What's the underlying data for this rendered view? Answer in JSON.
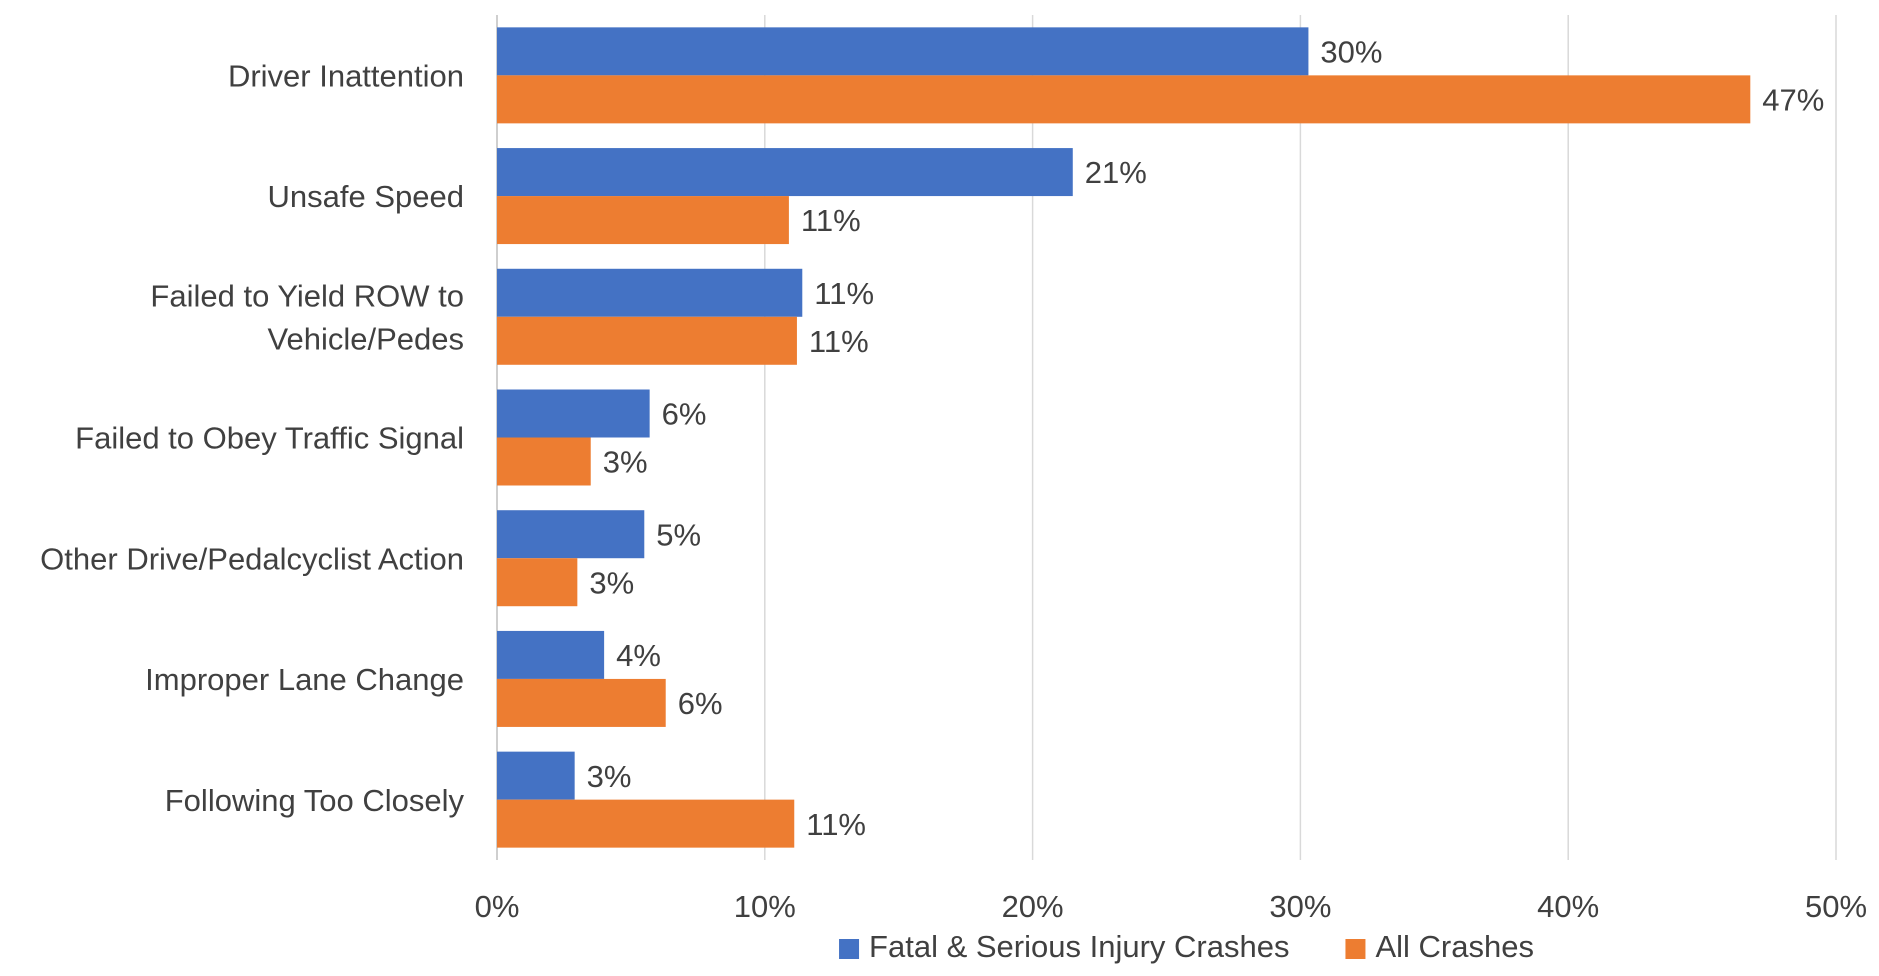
{
  "chart_data": {
    "type": "bar",
    "orientation": "horizontal",
    "title": "",
    "xlabel": "",
    "ylabel": "",
    "xlim": [
      0,
      50
    ],
    "x_ticks": [
      0,
      10,
      20,
      30,
      40,
      50
    ],
    "x_tick_labels": [
      "0%",
      "10%",
      "20%",
      "30%",
      "40%",
      "50%"
    ],
    "grid": true,
    "legend_position": "bottom",
    "categories": [
      "Driver Inattention",
      "Unsafe Speed",
      "Failed to Yield ROW to Vehicle/Pedes",
      "Failed to Obey Traffic Signal",
      "Other Drive/Pedalcyclist Action",
      "Improper Lane Change",
      "Following Too Closely"
    ],
    "category_label_lines": [
      [
        "Driver Inattention"
      ],
      [
        "Unsafe Speed"
      ],
      [
        "Failed to Yield ROW to",
        "Vehicle/Pedes"
      ],
      [
        "Failed to Obey Traffic Signal"
      ],
      [
        "Other Drive/Pedalcyclist Action"
      ],
      [
        "Improper Lane Change"
      ],
      [
        "Following Too Closely"
      ]
    ],
    "series": [
      {
        "name": "Fatal & Serious Injury Crashes",
        "color": "#4472C4",
        "values": [
          30.3,
          21.5,
          11.4,
          5.7,
          5.5,
          4.0,
          2.9
        ],
        "labels": [
          "30%",
          "21%",
          "11%",
          "6%",
          "5%",
          "4%",
          "3%"
        ]
      },
      {
        "name": "All Crashes",
        "color": "#ED7D31",
        "values": [
          46.8,
          10.9,
          11.2,
          3.5,
          3.0,
          6.3,
          11.1
        ],
        "labels": [
          "47%",
          "11%",
          "11%",
          "3%",
          "3%",
          "6%",
          "11%"
        ]
      }
    ]
  },
  "colors": {
    "gridline": "#D9D9D9",
    "axis": "#BFBFBF",
    "text": "#404040",
    "background": "#FFFFFF"
  }
}
